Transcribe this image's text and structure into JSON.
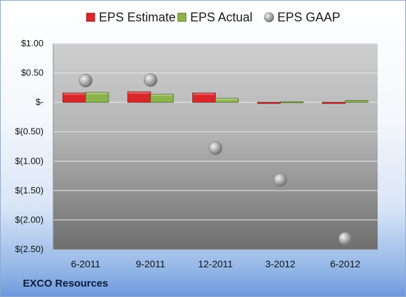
{
  "company_label": "EXCO Resources",
  "chart_data": {
    "type": "bar",
    "categories": [
      "6-2011",
      "9-2011",
      "12-2011",
      "3-2012",
      "6-2012"
    ],
    "series": [
      {
        "name": "EPS Estimate",
        "kind": "bar",
        "color": "#d9262a",
        "values": [
          0.16,
          0.18,
          0.16,
          -0.02,
          -0.02
        ]
      },
      {
        "name": "EPS Actual",
        "kind": "bar",
        "color": "#8ab34a",
        "values": [
          0.17,
          0.14,
          0.07,
          0.01,
          0.03
        ]
      },
      {
        "name": "EPS GAAP",
        "kind": "scatter",
        "color": "#a8a8a8",
        "values": [
          0.37,
          0.38,
          -0.78,
          -1.32,
          -2.32
        ]
      }
    ],
    "ylim": [
      -2.5,
      1.0
    ],
    "yticks": [
      1.0,
      0.5,
      0.0,
      -0.5,
      -1.0,
      -1.5,
      -2.0,
      -2.5
    ],
    "ytick_labels": [
      "$1.00",
      "$0.50",
      "$-",
      "$(0.50)",
      "$(1.00)",
      "$(1.50)",
      "$(2.00)",
      "$(2.50)"
    ],
    "legend_position": "top",
    "grid": true
  }
}
